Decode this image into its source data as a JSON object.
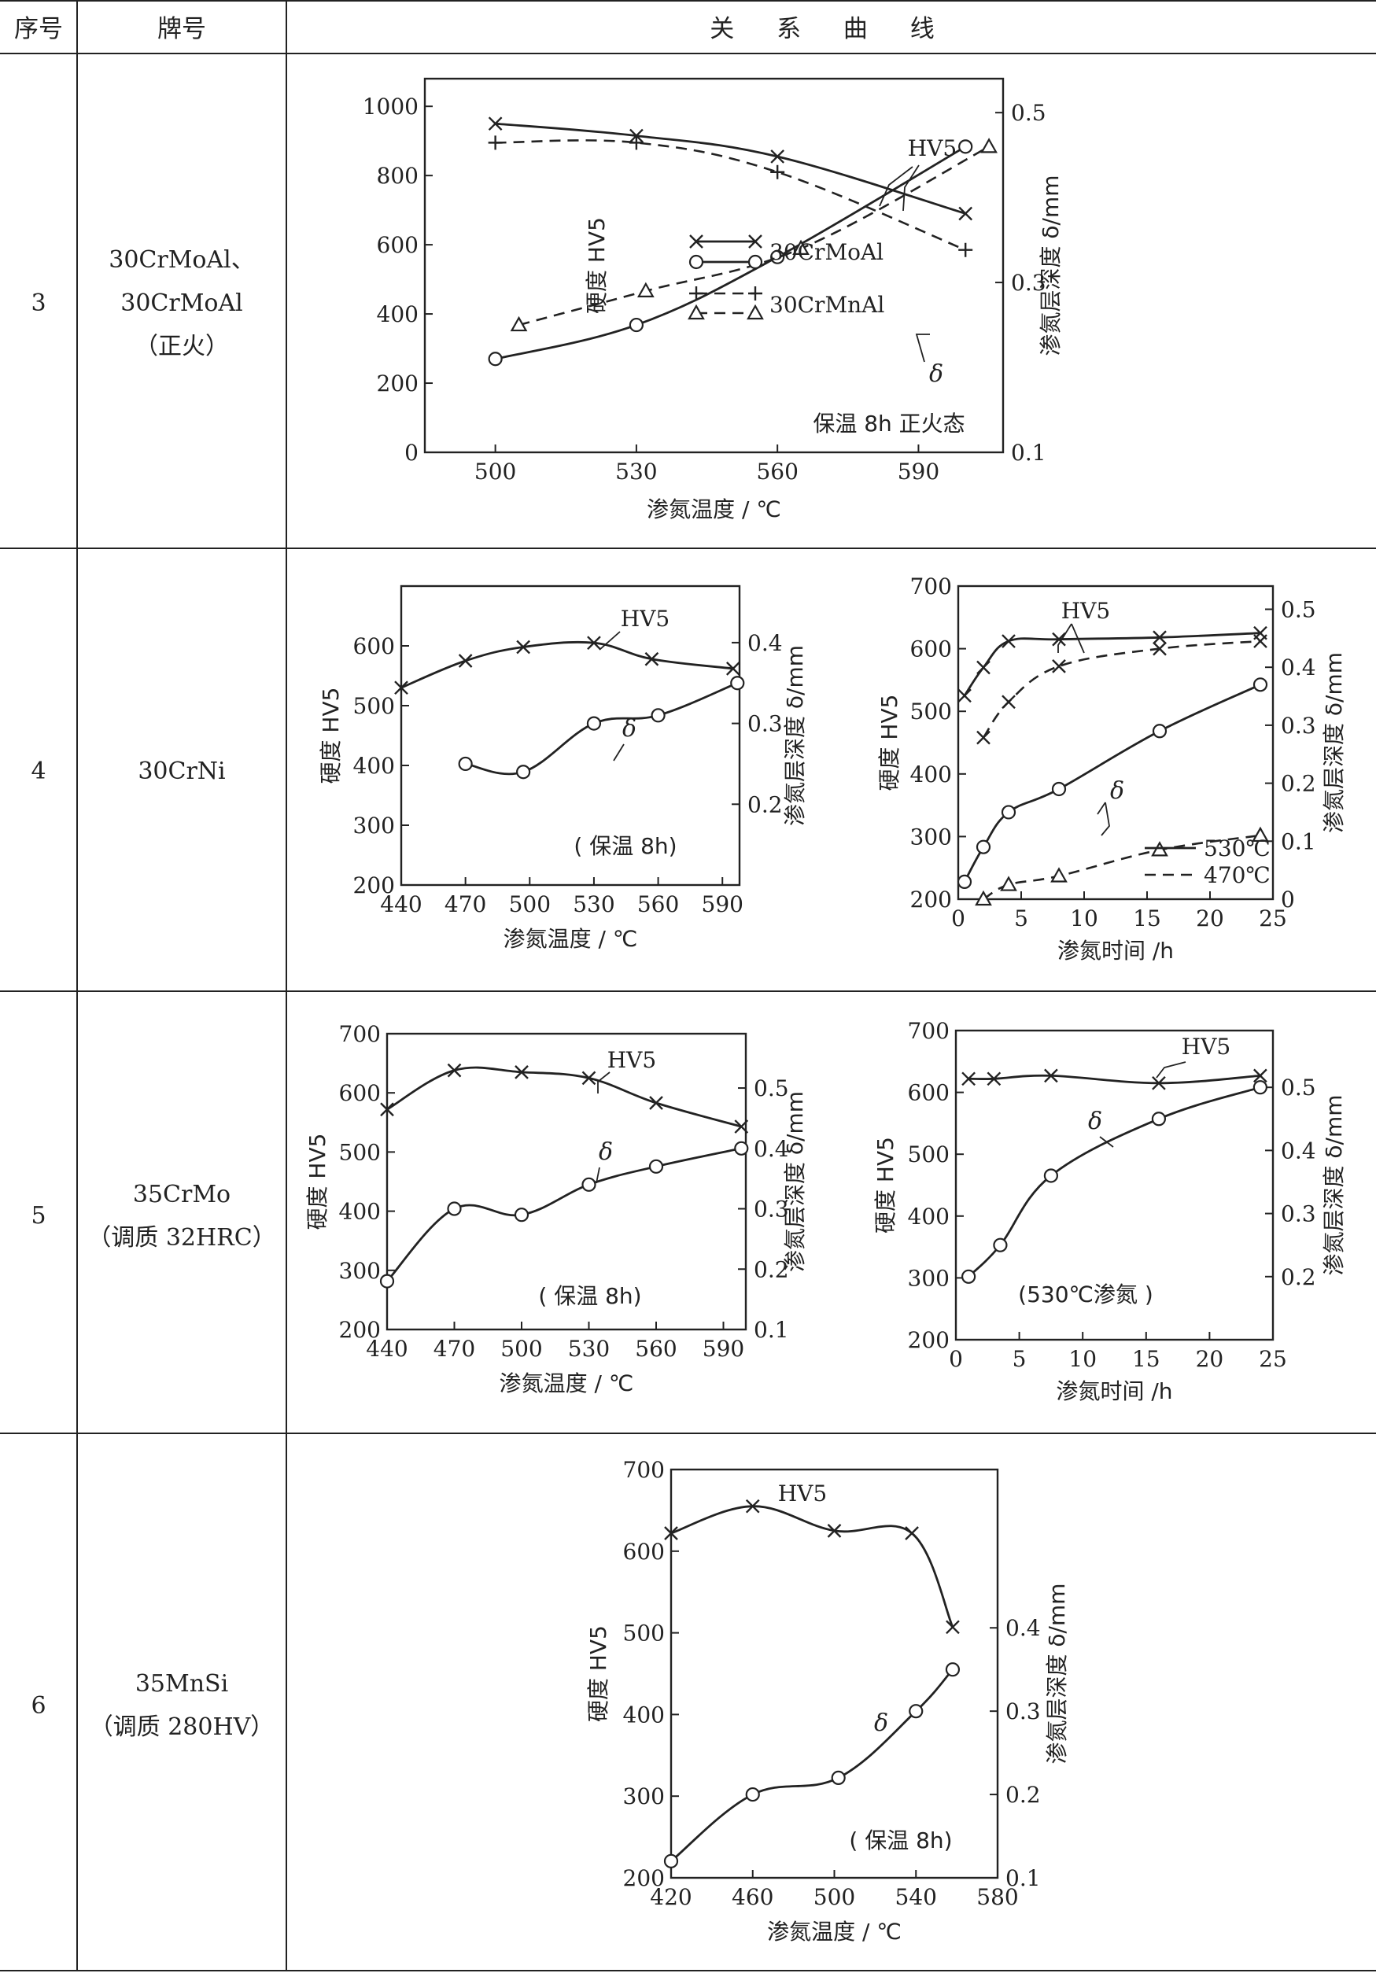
{
  "table": {
    "headers": [
      "序号",
      "牌号",
      "关 系 曲 线"
    ],
    "rows": [
      {
        "index": "3",
        "grade_lines": [
          "30CrMoAl、",
          "30CrMoAl",
          "（正火）"
        ]
      },
      {
        "index": "4",
        "grade_lines": [
          "30CrNi"
        ]
      },
      {
        "index": "5",
        "grade_lines": [
          "35CrMo",
          "（调质 32HRC）"
        ]
      },
      {
        "index": "6",
        "grade_lines": [
          "35MnSi",
          "（调质 280HV）"
        ]
      }
    ]
  },
  "chart_data": [
    {
      "type": "line",
      "row": "3",
      "xlabel": "渗氮温度 / ℃",
      "ylabel": "硬度 HV5",
      "y2label": "渗氮层深度 δ/mm",
      "x_ticks": [
        500,
        530,
        560,
        590
      ],
      "xlim": [
        485,
        608
      ],
      "y_ticks": [
        0,
        200,
        400,
        600,
        800,
        1000
      ],
      "ylim": [
        0,
        1080
      ],
      "y2_ticks": [
        0.1,
        0.3,
        0.5
      ],
      "y2lim": [
        0.1,
        0.54
      ],
      "annotations": [
        "HV5",
        "δ",
        "保温 8h 正火态"
      ],
      "legend": [
        {
          "label": "30CrMoAl",
          "styles": [
            "x-solid",
            "o-solid"
          ]
        },
        {
          "label": "30CrMnAl",
          "styles": [
            "plus-dashed",
            "triangle-dashed"
          ]
        }
      ],
      "series": [
        {
          "name": "30CrMoAl",
          "measure": "HV5",
          "axis": "left",
          "marker": "x",
          "line": "solid",
          "x": [
            500,
            530,
            560,
            600
          ],
          "y": [
            950,
            915,
            855,
            690
          ]
        },
        {
          "name": "30CrMnAl",
          "measure": "HV5",
          "axis": "left",
          "marker": "+",
          "line": "dashed",
          "x": [
            500,
            530,
            560,
            600
          ],
          "y": [
            895,
            895,
            810,
            585
          ]
        },
        {
          "name": "30CrMoAl",
          "measure": "δ",
          "axis": "right",
          "marker": "o",
          "line": "solid",
          "x": [
            500,
            530,
            560,
            600
          ],
          "y": [
            0.21,
            0.25,
            0.33,
            0.46
          ]
        },
        {
          "name": "30CrMnAl",
          "measure": "δ",
          "axis": "right",
          "marker": "triangle",
          "line": "dashed",
          "x": [
            505,
            532,
            565,
            605
          ],
          "y": [
            0.25,
            0.29,
            0.34,
            0.46
          ]
        }
      ]
    },
    {
      "type": "line",
      "row": "4",
      "xlabel": "渗氮温度 / ℃",
      "ylabel": "硬度 HV5",
      "y2label": "渗氮层深度 δ/mm",
      "x_ticks": [
        440,
        470,
        500,
        530,
        560,
        590
      ],
      "xlim": [
        440,
        598
      ],
      "y_ticks": [
        200,
        300,
        400,
        500,
        600
      ],
      "ylim": [
        200,
        700
      ],
      "y2_ticks": [
        0.2,
        0.3,
        0.4
      ],
      "y2lim": [
        0.1,
        0.47
      ],
      "annotations": [
        "HV5",
        "δ",
        "( 保温 8h)"
      ],
      "series": [
        {
          "measure": "HV5",
          "axis": "left",
          "marker": "x",
          "line": "solid",
          "x": [
            440,
            470,
            497,
            530,
            557,
            595
          ],
          "y": [
            530,
            575,
            598,
            605,
            578,
            562
          ]
        },
        {
          "measure": "δ",
          "axis": "right",
          "marker": "o",
          "line": "solid",
          "x": [
            470,
            497,
            530,
            560,
            597
          ],
          "y": [
            0.25,
            0.24,
            0.3,
            0.31,
            0.35
          ]
        }
      ]
    },
    {
      "type": "line",
      "row": "4",
      "xlabel": "渗氮时间 /h",
      "ylabel": "硬度 HV5",
      "y2label": "渗氮层深度 δ/mm",
      "x_ticks": [
        0,
        5,
        10,
        15,
        20,
        25
      ],
      "xlim": [
        0,
        25
      ],
      "y_ticks": [
        200,
        300,
        400,
        500,
        600,
        700
      ],
      "ylim": [
        200,
        700
      ],
      "y2_ticks": [
        0,
        0.1,
        0.2,
        0.3,
        0.4,
        0.5
      ],
      "y2lim": [
        0,
        0.54
      ],
      "annotations": [
        "HV5",
        "δ"
      ],
      "legend": [
        {
          "label": "530℃",
          "line": "solid"
        },
        {
          "label": "470℃",
          "line": "dashed"
        }
      ],
      "series": [
        {
          "name": "530℃",
          "measure": "HV5",
          "axis": "left",
          "marker": "x",
          "line": "solid",
          "x": [
            0.5,
            2,
            4,
            8,
            16,
            24
          ],
          "y": [
            525,
            570,
            612,
            615,
            618,
            625
          ]
        },
        {
          "name": "470℃",
          "measure": "HV5",
          "axis": "left",
          "marker": "x",
          "line": "dashed",
          "x": [
            2,
            4,
            8,
            16,
            24
          ],
          "y": [
            458,
            515,
            572,
            600,
            612
          ]
        },
        {
          "name": "530℃",
          "measure": "δ",
          "axis": "right",
          "marker": "o",
          "line": "solid",
          "x": [
            0.5,
            2,
            4,
            8,
            16,
            24
          ],
          "y": [
            0.03,
            0.09,
            0.15,
            0.19,
            0.29,
            0.37
          ]
        },
        {
          "name": "470℃",
          "measure": "δ",
          "axis": "right",
          "marker": "triangle",
          "line": "dashed",
          "x": [
            2,
            4,
            8,
            16,
            24
          ],
          "y": [
            0.0,
            0.025,
            0.04,
            0.085,
            0.11
          ]
        }
      ]
    },
    {
      "type": "line",
      "row": "5",
      "xlabel": "渗氮温度 / ℃",
      "ylabel": "硬度 HV5",
      "y2label": "渗氮层深度 δ/mm",
      "x_ticks": [
        440,
        470,
        500,
        530,
        560,
        590
      ],
      "xlim": [
        440,
        600
      ],
      "y_ticks": [
        200,
        300,
        400,
        500,
        600,
        700
      ],
      "ylim": [
        200,
        700
      ],
      "y2_ticks": [
        0.1,
        0.2,
        0.3,
        0.4,
        0.5
      ],
      "y2lim": [
        0.1,
        0.59
      ],
      "annotations": [
        "HV5",
        "δ",
        "( 保温 8h)"
      ],
      "series": [
        {
          "measure": "HV5",
          "axis": "left",
          "marker": "x",
          "line": "solid",
          "x": [
            440,
            470,
            500,
            530,
            560,
            598
          ],
          "y": [
            572,
            638,
            635,
            625,
            583,
            543
          ]
        },
        {
          "measure": "δ",
          "axis": "right",
          "marker": "o",
          "line": "solid",
          "x": [
            440,
            470,
            500,
            530,
            560,
            598
          ],
          "y": [
            0.18,
            0.3,
            0.29,
            0.34,
            0.37,
            0.4
          ]
        }
      ]
    },
    {
      "type": "line",
      "row": "5",
      "xlabel": "渗氮时间 /h",
      "ylabel": "硬度 HV5",
      "y2label": "渗氮层深度 δ/mm",
      "x_ticks": [
        0,
        5,
        10,
        15,
        20,
        25
      ],
      "xlim": [
        0,
        25
      ],
      "y_ticks": [
        200,
        300,
        400,
        500,
        600,
        700
      ],
      "ylim": [
        200,
        700
      ],
      "y2_ticks": [
        0.2,
        0.3,
        0.4,
        0.5
      ],
      "y2lim": [
        0.1,
        0.59
      ],
      "annotations": [
        "HV5",
        "δ",
        "(530℃渗氮 )"
      ],
      "series": [
        {
          "measure": "HV5",
          "axis": "left",
          "marker": "x",
          "line": "solid",
          "x": [
            1,
            3,
            7.5,
            16,
            24
          ],
          "y": [
            622,
            622,
            627,
            615,
            627
          ]
        },
        {
          "measure": "δ",
          "axis": "right",
          "marker": "o",
          "line": "solid",
          "x": [
            1,
            3.5,
            7.5,
            16,
            24
          ],
          "y": [
            0.2,
            0.25,
            0.36,
            0.45,
            0.5
          ]
        }
      ]
    },
    {
      "type": "line",
      "row": "6",
      "xlabel": "渗氮温度 / ℃",
      "ylabel": "硬度 HV5",
      "y2label": "渗氮层深度 δ/mm",
      "x_ticks": [
        420,
        460,
        500,
        540,
        580
      ],
      "xlim": [
        420,
        580
      ],
      "y_ticks": [
        200,
        300,
        400,
        500,
        600,
        700
      ],
      "ylim": [
        200,
        700
      ],
      "y2_ticks": [
        0.1,
        0.2,
        0.3,
        0.4
      ],
      "y2lim": [
        0.1,
        0.59
      ],
      "annotations": [
        "HV5",
        "δ",
        "( 保温 8h)"
      ],
      "series": [
        {
          "measure": "HV5",
          "axis": "left",
          "marker": "x",
          "line": "solid",
          "x": [
            420,
            460,
            500,
            538,
            558
          ],
          "y": [
            622,
            655,
            625,
            622,
            507
          ]
        },
        {
          "measure": "δ",
          "axis": "right",
          "marker": "o",
          "line": "solid",
          "x": [
            420,
            460,
            502,
            540,
            558
          ],
          "y": [
            0.12,
            0.2,
            0.22,
            0.3,
            0.35
          ]
        }
      ]
    }
  ]
}
